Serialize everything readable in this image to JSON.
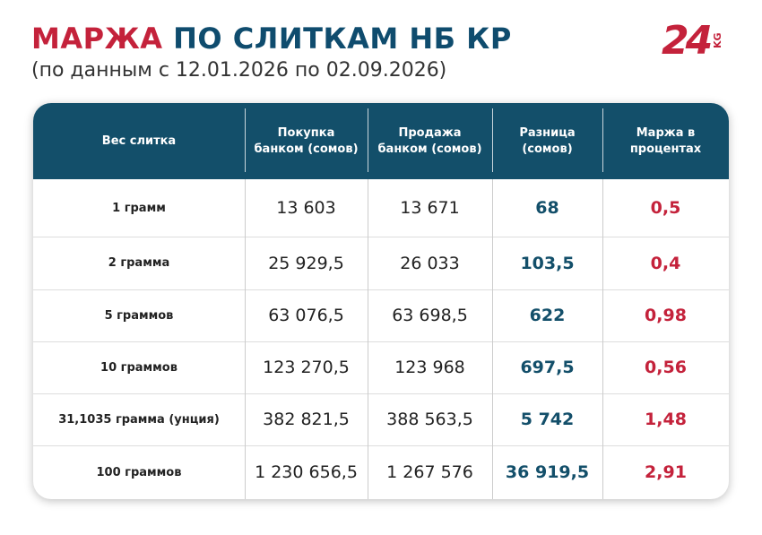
{
  "header": {
    "title_accent": "МАРЖА",
    "title_rest": "ПО СЛИТКАМ НБ КР",
    "subtitle": "(по данным с 12.01.2026 по 02.09.2026)"
  },
  "logo": {
    "main": "24",
    "suffix": "KG"
  },
  "table": {
    "columns": [
      "Вес слитка",
      "Покупка банком (сомов)",
      "Продажа банком (сомов)",
      "Разница (сомов)",
      "Маржа в процентах"
    ],
    "rows": [
      [
        "1 грамм",
        "13 603",
        "13 671",
        "68",
        "0,5"
      ],
      [
        "2 грамма",
        "25 929,5",
        "26 033",
        "103,5",
        "0,4"
      ],
      [
        "5 граммов",
        "63 076,5",
        "63 698,5",
        "622",
        "0,98"
      ],
      [
        "10 граммов",
        "123 270,5",
        "123 968",
        "697,5",
        "0,56"
      ],
      [
        "31,1035 грамма (унция)",
        "382 821,5",
        "388 563,5",
        "5 742",
        "1,48"
      ],
      [
        "100 граммов",
        "1 230 656,5",
        "1 267 576",
        "36 919,5",
        "2,91"
      ]
    ]
  }
}
